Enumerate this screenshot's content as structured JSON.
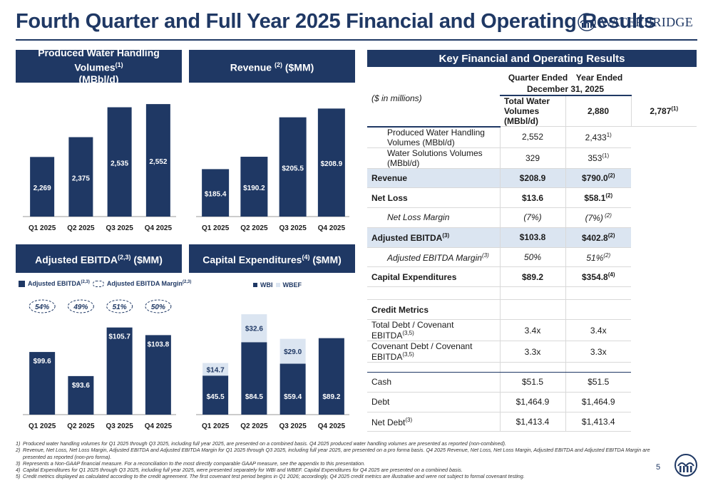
{
  "title": "Fourth Quarter and Full Year 2025 Financial and Operating Results",
  "logo_text": "WATERBRIDGE",
  "page_number": "5",
  "colors": {
    "primary": "#1f3864",
    "light": "#dbe5f1"
  },
  "panels": {
    "volumes": {
      "title_line1": "Produced Water Handling Volumes",
      "sup": "(1)",
      "title_line2": "(MBbl/d)"
    },
    "revenue": {
      "title": "Revenue ",
      "sup": "(2)",
      "title_tail": " ($MM)"
    },
    "ebitda": {
      "title": "Adjusted EBITDA",
      "sup": "(2,3)",
      "title_tail": " ($MM)"
    },
    "capex": {
      "title": "Capital Expenditures",
      "sup": "(4)",
      "title_tail": " ($MM)"
    }
  },
  "legends": {
    "ebitda_bar": "Adjusted EBITDA",
    "ebitda_bar_sup": "(2,3)",
    "ebitda_margin": "Adjusted EBITDA Margin",
    "ebitda_margin_sup": "(2,3)",
    "capex_wbi": "WBI",
    "capex_wbef": "WBEF"
  },
  "chart_data": [
    {
      "type": "bar",
      "title": "Produced Water Handling Volumes (MBbl/d)",
      "categories": [
        "Q1 2025",
        "Q2 2025",
        "Q3 2025",
        "Q4 2025"
      ],
      "values": [
        2269,
        2375,
        2535,
        2552
      ],
      "labels": [
        "2,269",
        "2,375",
        "2,535",
        "2,552"
      ],
      "ylim": [
        1950,
        2560
      ]
    },
    {
      "type": "bar",
      "title": "Revenue ($MM)",
      "categories": [
        "Q1 2025",
        "Q2 2025",
        "Q3 2025",
        "Q4 2025"
      ],
      "values": [
        185.4,
        190.2,
        205.5,
        208.9
      ],
      "labels": [
        "$185.4",
        "$190.2",
        "$205.5",
        "$208.9"
      ],
      "ylim": [
        167,
        209
      ]
    },
    {
      "type": "bar",
      "title": "Adjusted EBITDA ($MM)",
      "categories": [
        "Q1 2025",
        "Q2 2025",
        "Q3 2025",
        "Q4 2025"
      ],
      "values": [
        99.6,
        93.6,
        105.7,
        103.8
      ],
      "labels": [
        "$99.6",
        "$93.6",
        "$105.7",
        "$103.8"
      ],
      "margins": [
        "54%",
        "49%",
        "51%",
        "50%"
      ],
      "ylim": [
        84,
        106
      ]
    },
    {
      "type": "bar",
      "stacked": true,
      "title": "Capital Expenditures ($MM)",
      "categories": [
        "Q1 2025",
        "Q2 2025",
        "Q3 2025",
        "Q4 2025"
      ],
      "series": [
        {
          "name": "WBI",
          "values": [
            45.5,
            84.5,
            59.4,
            89.2
          ],
          "labels": [
            "$45.5",
            "$84.5",
            "$59.4",
            "$89.2"
          ]
        },
        {
          "name": "WBEF",
          "values": [
            14.7,
            32.6,
            29.0,
            0
          ],
          "labels": [
            "$14.7",
            "$32.6",
            "$29.0",
            ""
          ]
        }
      ],
      "ylim": [
        0,
        118
      ]
    }
  ],
  "table": {
    "header": "Key Financial and Operating Results",
    "units": "($ in millions)",
    "col1": "Quarter Ended",
    "col2": "Year Ended",
    "date": "December 31, 2025",
    "rows": [
      {
        "label": "Total Water Volumes (MBbl/d)",
        "q": "2,880",
        "y": "2,787",
        "ysup": "(1)",
        "style": "bold"
      },
      {
        "label": "Produced Water Handling Volumes (MBbl/d)",
        "q": "2,552",
        "y": "2,433",
        "ysup": "1)",
        "style": "ind"
      },
      {
        "label": "Water Solutions Volumes (MBbl/d)",
        "q": "329",
        "y": "353",
        "ysup": "(1)",
        "style": "ind"
      },
      {
        "label": "Revenue",
        "q": "$208.9",
        "y": "$790.0",
        "ysup": "(2)",
        "style": "bold hl"
      },
      {
        "label": "Net Loss",
        "q": "$13.6",
        "y": "$58.1",
        "ysup": "(2)",
        "style": "bold"
      },
      {
        "label": "Net Loss Margin",
        "q": "(7%)",
        "y": "(7%)",
        "ysup": " (2)",
        "style": "ind it"
      },
      {
        "label": "Adjusted EBITDA",
        "lsup": "(3)",
        "q": "$103.8",
        "y": "$402.8",
        "ysup": "(2)",
        "style": "bold hl"
      },
      {
        "label": "Adjusted EBITDA Margin",
        "lsup": "(3)",
        "q": "50%",
        "y": "51%",
        "ysup": "(2)",
        "style": "ind it"
      },
      {
        "label": "Capital Expenditures",
        "q": "$89.2",
        "y": "$354.8",
        "ysup": "(4)",
        "style": "bold"
      }
    ],
    "credit_title": "Credit Metrics",
    "credit_rows": [
      {
        "label": "Total Debt / Covenant EBITDA",
        "lsup": "(3,5)",
        "q": "3.4x",
        "y": "3.4x"
      },
      {
        "label": "Covenant Debt / Covenant EBITDA",
        "lsup": "(3,5)",
        "q": "3.3x",
        "y": "3.3x"
      }
    ],
    "balance_rows": [
      {
        "label": "Cash",
        "q": "$51.5",
        "y": "$51.5"
      },
      {
        "label": "Debt",
        "q": "$1,464.9",
        "y": "$1,464.9"
      },
      {
        "label": "Net Debt",
        "lsup": "(3)",
        "q": "$1,413.4",
        "y": "$1,413.4"
      }
    ]
  },
  "footnotes": [
    {
      "n": "1)",
      "text": "Produced water handling volumes for Q1 2025 through Q3 2025, including full year 2025, are presented on a combined basis. Q4 2025 produced water handling volumes are presented as reported (non-combined)."
    },
    {
      "n": "2)",
      "text": "Revenue, Net Loss, Net Loss Margin, Adjusted EBITDA and Adjusted EBITDA Margin for Q1 2025 through Q3 2025, including full year 2025, are presented on a pro forma basis. Q4 2025 Revenue, Net Loss, Net Loss Margin, Adjusted EBITDA and Adjusted EBITDA Margin are presented as reported (non-pro forma)."
    },
    {
      "n": "3)",
      "text": "Represents a Non-GAAP financial measure. For a reconciliation to the most directly comparable GAAP measure, see the appendix to this presentation."
    },
    {
      "n": "4)",
      "text": "Capital Expenditures for Q1 2025 through Q3 2025, including full year 2025, were presented separately for WBI and WBEF. Capital Expenditures for Q4 2025 are presented on a combined basis."
    },
    {
      "n": "5)",
      "text": "Credit metrics displayed as calculated according to the credit agreement. The first covenant test period begins in Q1 2026; accordingly, Q4 2025 credit metrics are illustrative and were not subject to formal covenant testing."
    }
  ]
}
